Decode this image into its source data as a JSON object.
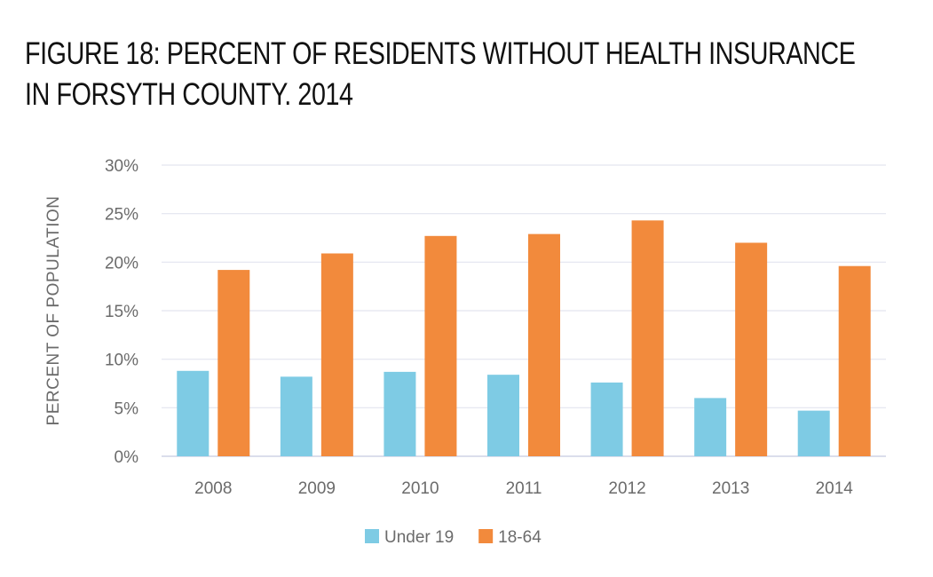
{
  "chart_data": {
    "type": "bar",
    "title_line1": "FIGURE 18: PERCENT OF RESIDENTS WITHOUT HEALTH INSURANCE",
    "title_line2": "IN FORSYTH COUNTY. 2014",
    "ylabel": "PERCENT OF POPULATION",
    "categories": [
      "2008",
      "2009",
      "2010",
      "2011",
      "2012",
      "2013",
      "2014"
    ],
    "ylim": [
      0,
      30
    ],
    "yticks": [
      "0%",
      "5%",
      "10%",
      "15%",
      "20%",
      "25%",
      "30%"
    ],
    "grid": true,
    "legend_position": "bottom",
    "series": [
      {
        "name": "Under 19",
        "color": "#7ecbe4",
        "values": [
          8.8,
          8.2,
          8.7,
          8.4,
          7.6,
          6.0,
          4.7
        ]
      },
      {
        "name": "18-64",
        "color": "#f28a3c",
        "values": [
          19.2,
          20.9,
          22.7,
          22.9,
          24.3,
          22.0,
          19.6
        ]
      }
    ]
  }
}
